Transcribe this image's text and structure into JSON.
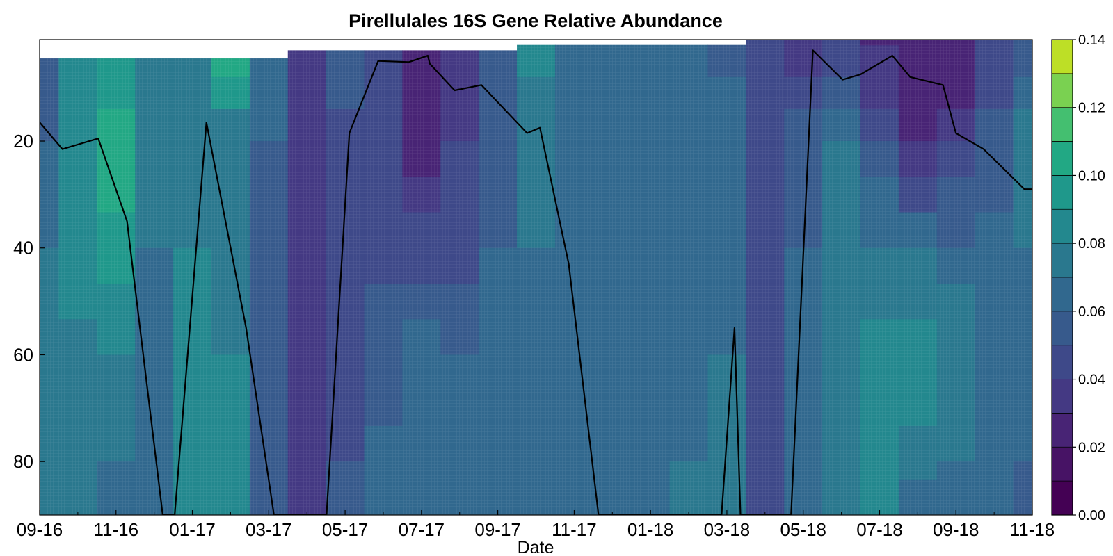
{
  "chart_data": {
    "type": "heatmap",
    "title": "Pirellulales 16S Gene Relative Abundance",
    "xlabel": "Date",
    "ylabel": "",
    "x_tick_labels": [
      "09-16",
      "11-16",
      "01-17",
      "03-17",
      "05-17",
      "07-17",
      "09-17",
      "11-17",
      "01-18",
      "03-18",
      "05-18",
      "07-18",
      "09-18",
      "11-18"
    ],
    "y_ticks": [
      20,
      40,
      60,
      80
    ],
    "ylim": [
      90,
      1
    ],
    "y_inverted": true,
    "colorbar": {
      "ticks": [
        0.0,
        0.02,
        0.04,
        0.06,
        0.08,
        0.1,
        0.12,
        0.14
      ],
      "tick_labels": [
        "0.00",
        "0.02",
        "0.04",
        "0.06",
        "0.08",
        "0.10",
        "0.12",
        "0.14"
      ],
      "levels": 14,
      "colormap": "viridis",
      "colors": [
        "#440154",
        "#471365",
        "#482475",
        "#443983",
        "#3e4989",
        "#375a8c",
        "#31688e",
        "#2a788e",
        "#23888e",
        "#1f988b",
        "#22a884",
        "#44bf70",
        "#7ad151",
        "#bddf26",
        "#fde725"
      ]
    },
    "columns": [
      {
        "date": "09-16",
        "top": 4.5,
        "values": [
          0.05,
          0.062,
          0.07,
          0.072,
          0.074,
          0.072
        ]
      },
      {
        "date": "10-16",
        "top": 4.5,
        "values": [
          0.082,
          0.09,
          0.084,
          0.078,
          0.076,
          0.072
        ]
      },
      {
        "date": "11-16",
        "top": 4.5,
        "values": [
          0.095,
          0.104,
          0.098,
          0.08,
          0.07,
          0.066
        ]
      },
      {
        "date": "12-16",
        "top": 4.5,
        "values": [
          0.074,
          0.072,
          0.07,
          0.068,
          0.064,
          0.066
        ]
      },
      {
        "date": "01-17",
        "top": 4.5,
        "values": [
          0.07,
          0.074,
          0.08,
          0.086,
          0.088,
          0.088
        ]
      },
      {
        "date": "02-17",
        "top": 4.5,
        "values": [
          0.11,
          0.072,
          0.074,
          0.08,
          0.082,
          0.08
        ]
      },
      {
        "date": "03-17",
        "top": 4.5,
        "values": [
          0.072,
          0.06,
          0.056,
          0.055,
          0.052,
          0.05
        ]
      },
      {
        "date": "04-17",
        "top": 3.0,
        "values": [
          0.04,
          0.036,
          0.034,
          0.034,
          0.034,
          0.034
        ]
      },
      {
        "date": "05-17",
        "top": 3.0,
        "values": [
          0.058,
          0.046,
          0.04,
          0.042,
          0.05,
          0.056
        ]
      },
      {
        "date": "06-17",
        "top": 3.0,
        "values": [
          0.04,
          0.044,
          0.048,
          0.056,
          0.062,
          0.06
        ]
      },
      {
        "date": "07-17",
        "top": 3.0,
        "values": [
          0.03,
          0.024,
          0.044,
          0.066,
          0.07,
          0.066
        ]
      },
      {
        "date": "08-17",
        "top": 3.0,
        "values": [
          0.036,
          0.04,
          0.046,
          0.06,
          0.062,
          0.06
        ]
      },
      {
        "date": "09-17",
        "top": 3.0,
        "values": [
          0.052,
          0.056,
          0.06,
          0.066,
          0.066,
          0.064
        ]
      },
      {
        "date": "10-17",
        "top": 2.0,
        "values": [
          0.082,
          0.074,
          0.07,
          0.066,
          0.064,
          0.062
        ]
      },
      {
        "date": "11-17",
        "top": 2.0,
        "values": [
          0.062,
          0.064,
          0.066,
          0.064,
          0.062,
          0.06
        ]
      },
      {
        "date": "12-17",
        "top": 2.0,
        "values": [
          0.06,
          0.062,
          0.064,
          0.064,
          0.062,
          0.062
        ]
      },
      {
        "date": "01-18",
        "top": 2.0,
        "values": [
          0.062,
          0.064,
          0.066,
          0.064,
          0.062,
          0.062
        ]
      },
      {
        "date": "02-18",
        "top": 2.0,
        "values": [
          0.06,
          0.062,
          0.064,
          0.068,
          0.07,
          0.072
        ]
      },
      {
        "date": "03-18",
        "top": 2.0,
        "values": [
          0.058,
          0.064,
          0.066,
          0.07,
          0.072,
          0.07
        ]
      },
      {
        "date": "04-18",
        "top": 1.0,
        "values": [
          0.044,
          0.046,
          0.046,
          0.046,
          0.046,
          0.046
        ]
      },
      {
        "date": "05-18",
        "top": 1.0,
        "values": [
          0.036,
          0.054,
          0.06,
          0.062,
          0.062,
          0.06
        ]
      },
      {
        "date": "06-18",
        "top": 1.0,
        "values": [
          0.04,
          0.07,
          0.074,
          0.078,
          0.078,
          0.076
        ]
      },
      {
        "date": "07-18",
        "top": 1.0,
        "values": [
          0.028,
          0.05,
          0.07,
          0.082,
          0.09,
          0.082
        ]
      },
      {
        "date": "08-18",
        "top": 1.0,
        "values": [
          0.02,
          0.03,
          0.066,
          0.09,
          0.074,
          0.06
        ]
      },
      {
        "date": "09-18",
        "top": 1.0,
        "values": [
          0.022,
          0.036,
          0.064,
          0.082,
          0.068,
          0.062
        ]
      },
      {
        "date": "10-18",
        "top": 1.0,
        "values": [
          0.04,
          0.054,
          0.064,
          0.07,
          0.068,
          0.066
        ]
      },
      {
        "date": "11-18",
        "top": 1.0,
        "values": [
          0.054,
          0.074,
          0.07,
          0.062,
          0.06,
          0.06
        ]
      }
    ],
    "depth_rows": [
      2,
      20,
      40,
      60,
      80,
      90
    ],
    "line_series": {
      "x": [
        "09-16",
        "10-16",
        "11-16",
        "11-16",
        "12-16",
        "12-16",
        "01-17",
        "02-17",
        "03-17",
        "04-17",
        "04-17",
        "05-17",
        "05-17",
        "06-17",
        "07-17",
        "07-17",
        "07-17",
        "08-17",
        "09-17",
        "10-17",
        "10-17",
        "11-17",
        "11-17",
        "03-18",
        "03-18",
        "03-18",
        "04-18",
        "05-18",
        "05-18",
        "06-18",
        "07-18",
        "07-18",
        "08-18",
        "09-18",
        "09-18",
        "10-18",
        "11-18"
      ],
      "y": [
        16.5,
        21.5,
        19.5,
        35.0,
        90.0,
        90.0,
        16.5,
        55.0,
        90.0,
        90.0,
        90.0,
        18.5,
        5.0,
        5.2,
        4.0,
        5.5,
        10.5,
        9.5,
        18.5,
        17.5,
        43.0,
        90.0,
        90.0,
        90.0,
        55.0,
        90.0,
        90.0,
        3.0,
        8.5,
        7.5,
        4.0,
        8.0,
        9.5,
        18.5,
        21.5,
        29.0,
        29.0
      ],
      "x_fraction": [
        0.0,
        0.023,
        0.059,
        0.088,
        0.124,
        0.136,
        0.168,
        0.208,
        0.236,
        0.266,
        0.289,
        0.312,
        0.341,
        0.372,
        0.391,
        0.393,
        0.418,
        0.445,
        0.491,
        0.504,
        0.533,
        0.563,
        0.687,
        0.687,
        0.7,
        0.706,
        0.757,
        0.779,
        0.809,
        0.827,
        0.859,
        0.877,
        0.91,
        0.923,
        0.951,
        0.992,
        1.0
      ]
    }
  }
}
